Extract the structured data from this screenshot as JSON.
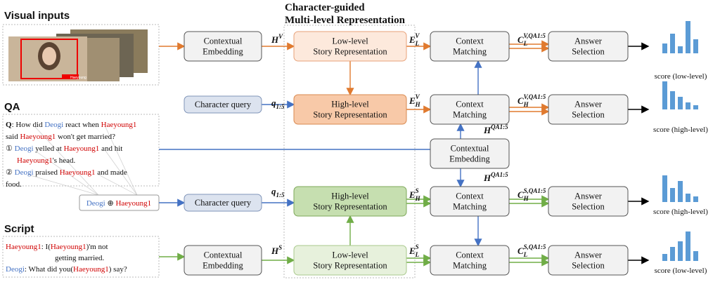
{
  "sections": {
    "visual": "Visual inputs",
    "qa": "QA",
    "script": "Script"
  },
  "image_caption": "Haeyoung",
  "module_title": [
    "Character-guided",
    "Multi-level Representation"
  ],
  "qa_lines": [
    [
      {
        "text": "Q",
        "weight": "bold"
      },
      {
        "text": ": How did "
      },
      {
        "text": "Deogi",
        "color": "#4472c4"
      },
      {
        "text": " react when "
      },
      {
        "text": "Haeyoung1",
        "color": "#d00000"
      }
    ],
    [
      {
        "text": "said "
      },
      {
        "text": "Haeyoung1",
        "color": "#d00000"
      },
      {
        "text": " won't get married?"
      }
    ],
    [
      {
        "text": "① "
      },
      {
        "text": "Deogi",
        "color": "#4472c4"
      },
      {
        "text": " yelled at "
      },
      {
        "text": "Haeyoung1",
        "color": "#d00000"
      },
      {
        "text": " and hit"
      }
    ],
    [
      {
        "text": "Haeyoung1",
        "color": "#d00000"
      },
      {
        "text": "'s head."
      }
    ],
    [
      {
        "text": "② "
      },
      {
        "text": "Deogi",
        "color": "#4472c4"
      },
      {
        "text": " praised "
      },
      {
        "text": "Haeyoung1",
        "color": "#d00000"
      },
      {
        "text": " and made"
      }
    ],
    [
      {
        "text": "food."
      }
    ]
  ],
  "script_lines": [
    [
      {
        "text": "Haeyoung1",
        "color": "#d00000"
      },
      {
        "text": ": I("
      },
      {
        "text": "Haeyoung1",
        "color": "#d00000"
      },
      {
        "text": ")'m not"
      }
    ],
    [
      {
        "text": "getting married."
      }
    ],
    [
      {
        "text": "Deogi",
        "color": "#4472c4"
      },
      {
        "text": ": What did you("
      },
      {
        "text": "Haeyoung1",
        "color": "#d00000"
      },
      {
        "text": ") say?"
      }
    ]
  ],
  "character_pair": [
    {
      "text": "Deogi",
      "color": "#4472c4"
    },
    {
      "text": " ⊕ "
    },
    {
      "text": "Haeyoung1",
      "color": "#d00000"
    }
  ],
  "boxes": [
    {
      "label": [
        "Contextual",
        "Embedding"
      ],
      "fill": "#f2f2f2"
    },
    {
      "label": [
        "Low-level",
        "Story Representation"
      ],
      "fill": "#fde9dc"
    },
    {
      "label": [
        "Context",
        "Matching"
      ],
      "fill": "#f2f2f2"
    },
    {
      "label": [
        "Answer",
        "Selection"
      ],
      "fill": "#f2f2f2"
    },
    {
      "label": [
        "Character query"
      ],
      "fill": "#dce3ef"
    },
    {
      "label": [
        "High-level",
        "Story Representation"
      ],
      "fill": "#f8c9a8"
    },
    {
      "label": [
        "Context",
        "Matching"
      ],
      "fill": "#f2f2f2"
    },
    {
      "label": [
        "Answer",
        "Selection"
      ],
      "fill": "#f2f2f2"
    },
    {
      "label": [
        "Contextual",
        "Embedding"
      ],
      "fill": "#f2f2f2"
    },
    {
      "label": [
        "Character query"
      ],
      "fill": "#dce3ef"
    },
    {
      "label": [
        "High-level",
        "Story Representation"
      ],
      "fill": "#c6dfb0"
    },
    {
      "label": [
        "Context",
        "Matching"
      ],
      "fill": "#f2f2f2"
    },
    {
      "label": [
        "Answer",
        "Selection"
      ],
      "fill": "#f2f2f2"
    },
    {
      "label": [
        "Contextual",
        "Embedding"
      ],
      "fill": "#f2f2f2"
    },
    {
      "label": [
        "Low-level",
        "Story Representation"
      ],
      "fill": "#e7f1dc"
    },
    {
      "label": [
        "Context",
        "Matching"
      ],
      "fill": "#f2f2f2"
    },
    {
      "label": [
        "Answer",
        "Selection"
      ],
      "fill": "#f2f2f2"
    }
  ],
  "edge_labels": [
    {
      "base": "H",
      "sup": "V"
    },
    {
      "base": "q",
      "sub": "1:5"
    },
    {
      "base": "q",
      "sub": "1:5"
    },
    {
      "base": "H",
      "sup": "S"
    },
    {
      "base": "E",
      "sub": "L",
      "sup": "V"
    },
    {
      "base": "E",
      "sub": "H",
      "sup": "V"
    },
    {
      "base": "E",
      "sub": "H",
      "sup": "S"
    },
    {
      "base": "E",
      "sub": "L",
      "sup": "S"
    },
    {
      "base": "C",
      "sub": "L",
      "sup": "V,QA1:5"
    },
    {
      "base": "C",
      "sub": "H",
      "sup": "V,QA1:5"
    },
    {
      "base": "C",
      "sub": "H",
      "sup": "S,QA1:5"
    },
    {
      "base": "C",
      "sub": "L",
      "sup": "S,QA1:5"
    },
    {
      "base": "H",
      "sup": "QA1:5"
    },
    {
      "base": "H",
      "sup": "QA1:5"
    }
  ],
  "score_labels": [
    "score (low-level)",
    "score (high-level)",
    "score (high-level)",
    "score (low-level)"
  ]
}
